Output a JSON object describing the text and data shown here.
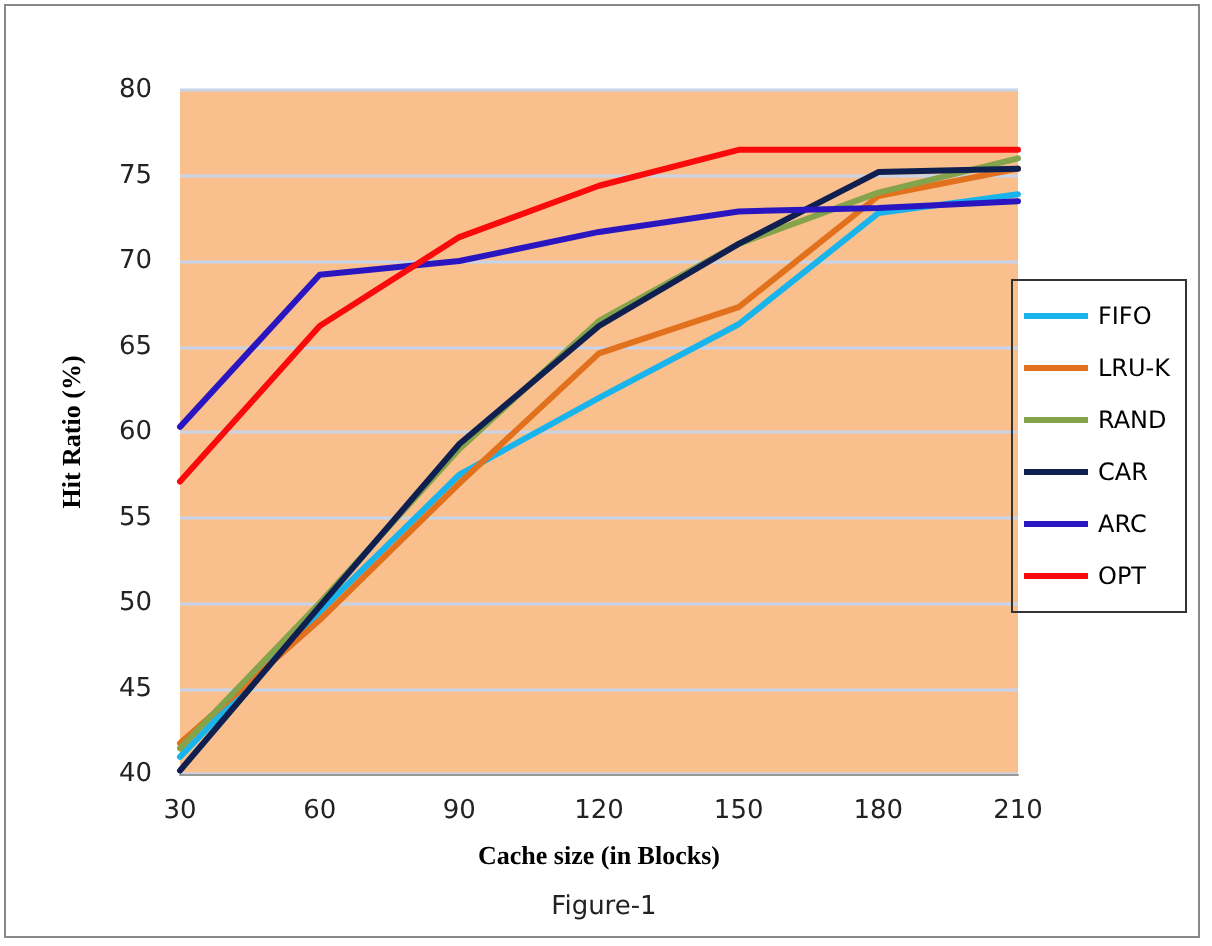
{
  "chart_data": {
    "type": "line",
    "xlabel": "Cache size (in Blocks)",
    "ylabel": "Hit Ratio (%)",
    "annotations": [
      "Figure-1"
    ],
    "x": [
      30,
      60,
      90,
      120,
      150,
      180,
      210
    ],
    "xlim": [
      30,
      210
    ],
    "xticks": [
      30,
      60,
      90,
      120,
      150,
      180,
      210
    ],
    "ylim": [
      40,
      80
    ],
    "yticks": [
      40,
      45,
      50,
      55,
      60,
      65,
      70,
      75,
      80
    ],
    "grid": "y",
    "legend": "right",
    "marker": "none",
    "line_style": "solid",
    "series": [
      {
        "name": "FIFO",
        "color": "#19b4ec",
        "values": [
          41,
          49.5,
          57.5,
          62,
          66.3,
          72.8,
          73.9
        ]
      },
      {
        "name": "LRU-K",
        "color": "#e2711d",
        "values": [
          41.8,
          49,
          57,
          64.6,
          67.3,
          73.8,
          75.4
        ]
      },
      {
        "name": "RAND",
        "color": "#84a34a",
        "values": [
          41.5,
          50,
          59,
          66.5,
          71,
          74,
          76
        ]
      },
      {
        "name": "CAR",
        "color": "#0f2050",
        "values": [
          40.2,
          49.8,
          59.3,
          66.2,
          71,
          75.2,
          75.4
        ]
      },
      {
        "name": "ARC",
        "color": "#2a16c0",
        "values": [
          60.3,
          69.2,
          70,
          71.7,
          72.9,
          73.1,
          73.5
        ]
      },
      {
        "name": "OPT",
        "color": "#fa0a0a",
        "values": [
          57.1,
          66.2,
          71.4,
          74.4,
          76.5,
          76.5,
          76.5
        ]
      }
    ]
  }
}
